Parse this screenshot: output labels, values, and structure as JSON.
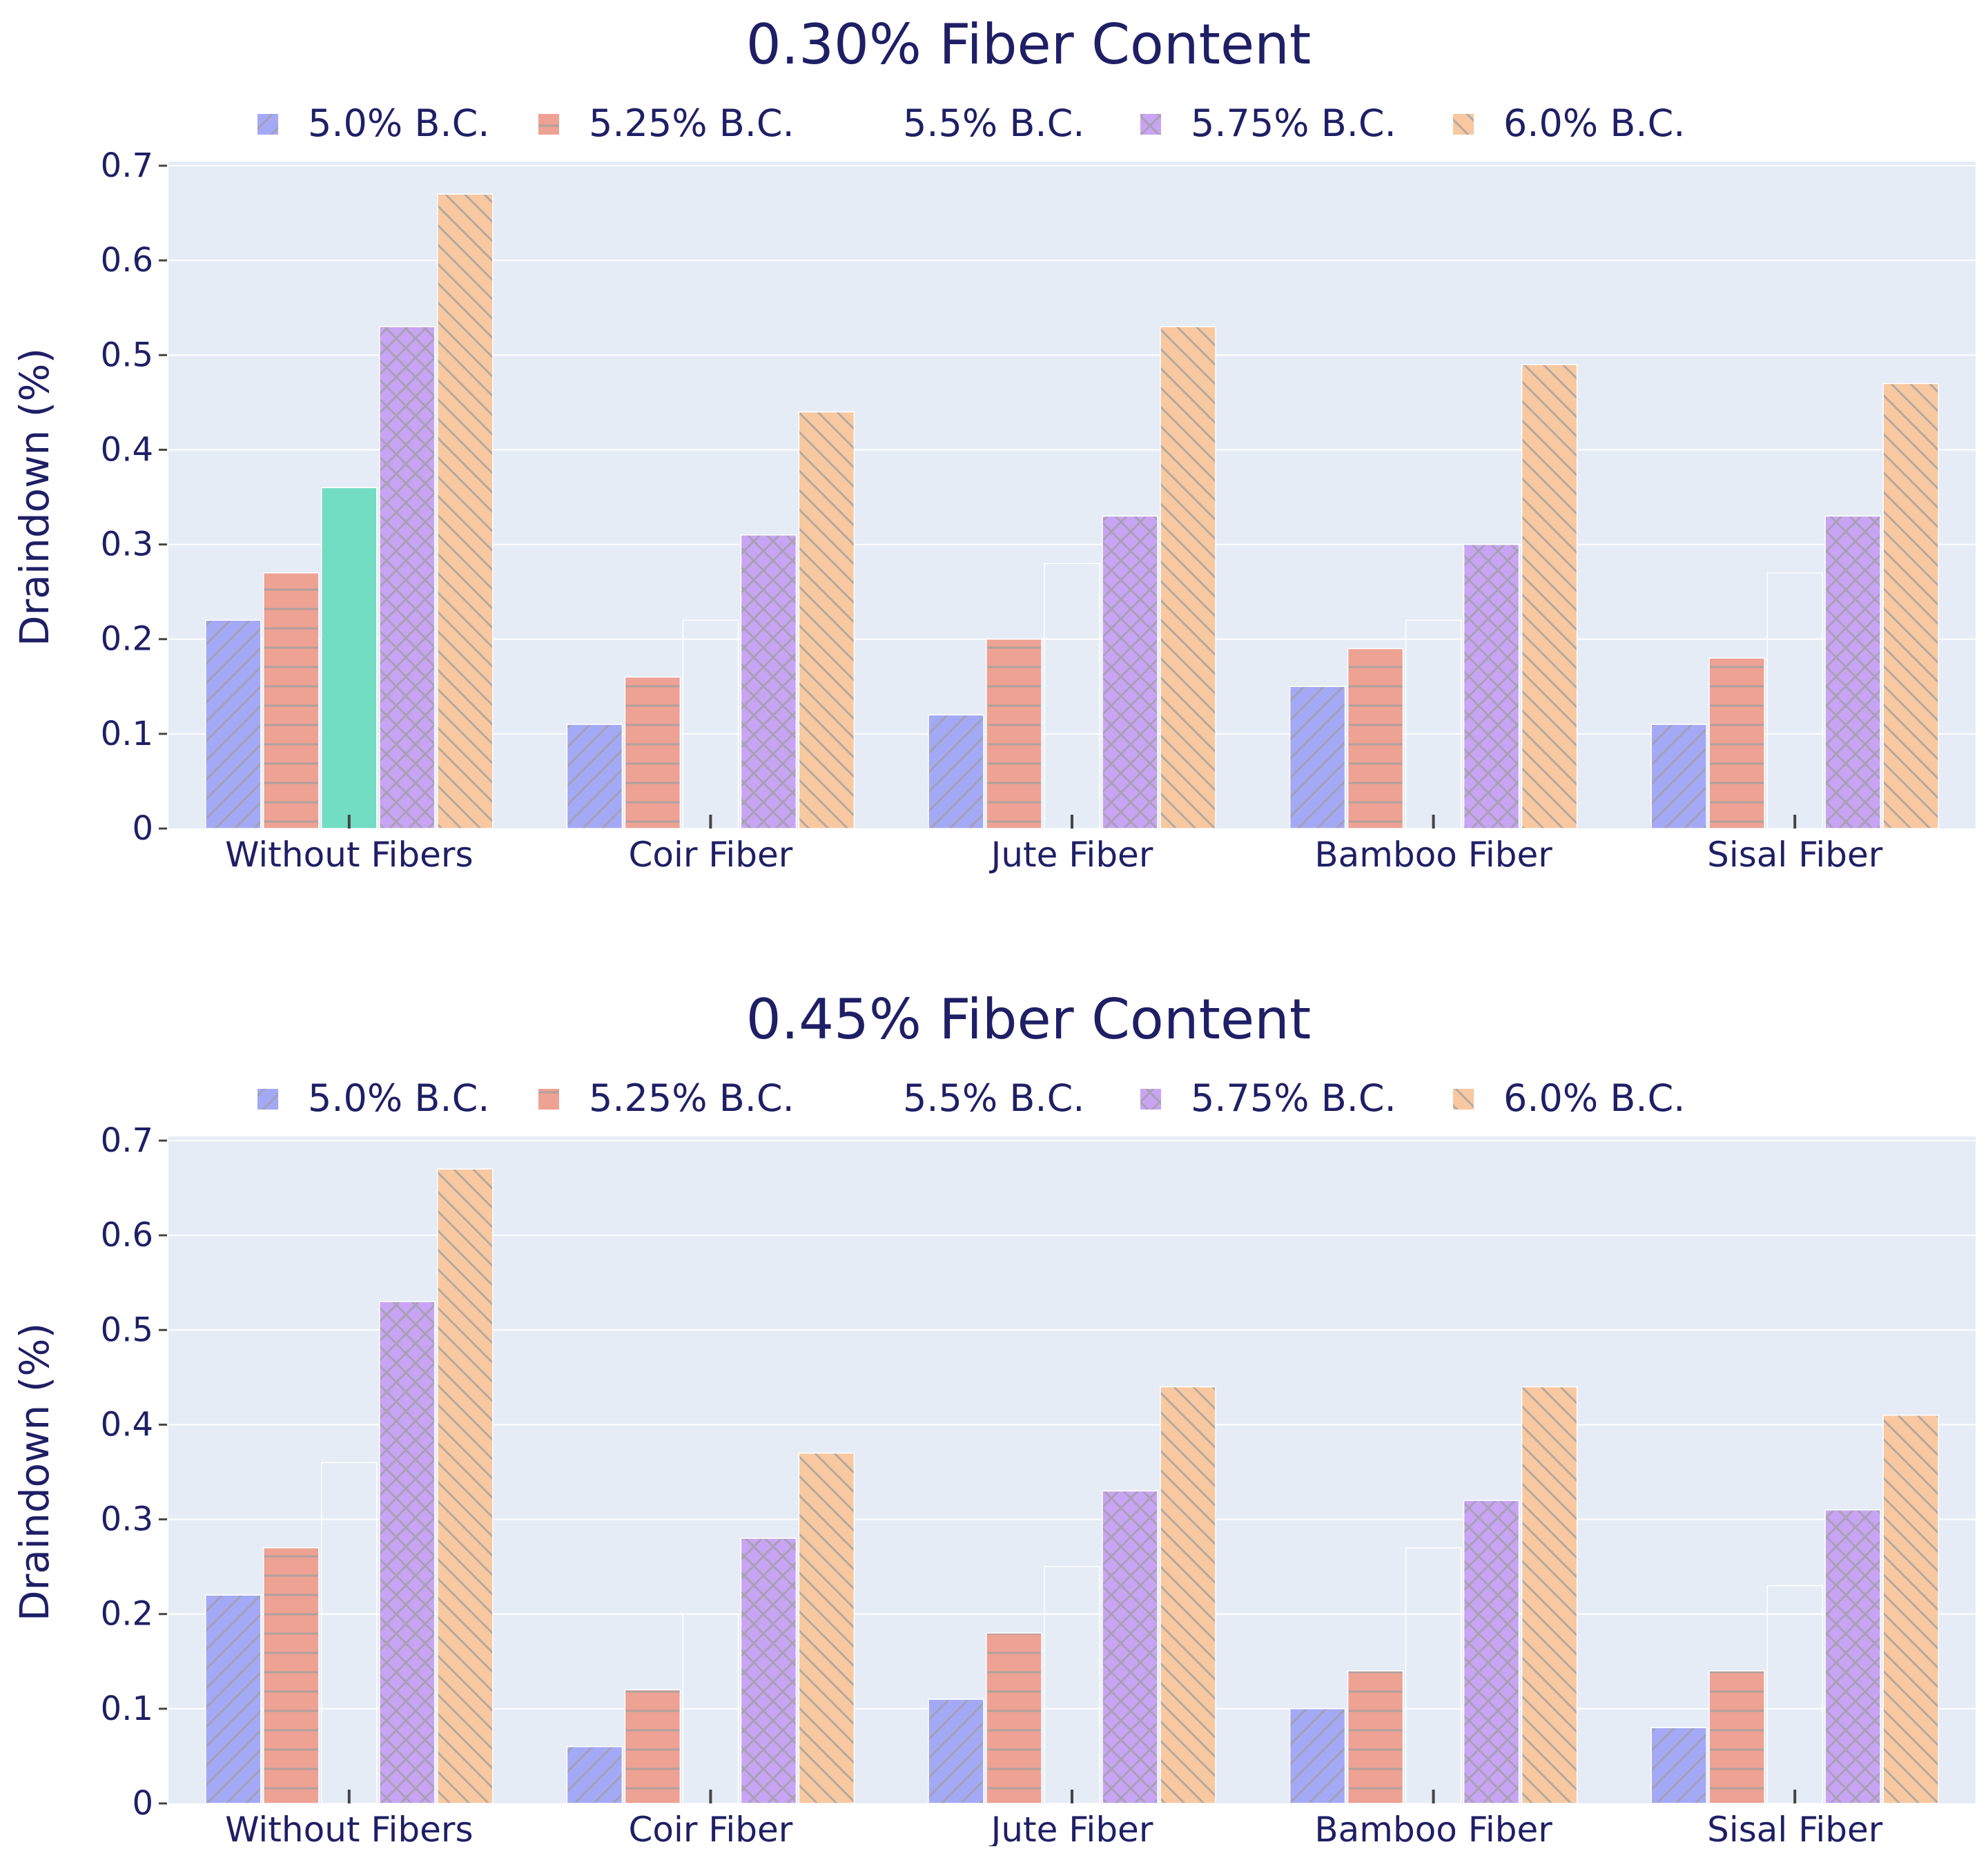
{
  "colors": {
    "text": "#1f1f66",
    "plot_bg": "#e5ecf6",
    "grid": "#ffffff",
    "axis_tick": "#444444",
    "pattern": "#9e9e9e"
  },
  "chart_data": [
    {
      "type": "bar",
      "title": "0.30% Fiber Content",
      "xlabel": "",
      "ylabel": "Draindown (%)",
      "ylim": [
        0,
        0.7
      ],
      "yticks": [
        "0",
        "0.1",
        "0.2",
        "0.3",
        "0.4",
        "0.5",
        "0.6",
        "0.7"
      ],
      "legend_position": "top-center",
      "categories": [
        "Without Fibers",
        "Coir Fiber",
        "Jute Fiber",
        "Bamboo Fiber",
        "Sisal Fiber"
      ],
      "series": [
        {
          "name": "5.0% B.C.",
          "color": "#a4a9f6",
          "pattern": "diagonal-up",
          "values": [
            0.22,
            0.11,
            0.12,
            0.15,
            0.11
          ]
        },
        {
          "name": "5.25% B.C.",
          "color": "#eda293",
          "pattern": "horizontal",
          "values": [
            0.27,
            0.16,
            0.2,
            0.19,
            0.18
          ]
        },
        {
          "name": "5.5% B.C.",
          "color": "#72ddc3",
          "pattern": "none",
          "values": [
            0.36,
            0.22,
            0.28,
            0.22,
            0.27
          ]
        },
        {
          "name": "5.75% B.C.",
          "color": "#c8a4f5",
          "pattern": "cross",
          "values": [
            0.53,
            0.31,
            0.33,
            0.3,
            0.33
          ]
        },
        {
          "name": "6.0% B.C.",
          "color": "#f8c8a0",
          "pattern": "diagonal-down",
          "values": [
            0.67,
            0.44,
            0.53,
            0.49,
            0.47
          ]
        }
      ]
    },
    {
      "type": "bar",
      "title": "0.45% Fiber Content",
      "xlabel": "",
      "ylabel": "Draindown (%)",
      "ylim": [
        0,
        0.7
      ],
      "yticks": [
        "0",
        "0.1",
        "0.2",
        "0.3",
        "0.4",
        "0.5",
        "0.6",
        "0.7"
      ],
      "legend_position": "top-center",
      "categories": [
        "Without Fibers",
        "Coir Fiber",
        "Jute Fiber",
        "Bamboo Fiber",
        "Sisal Fiber"
      ],
      "series": [
        {
          "name": "5.0% B.C.",
          "color": "#a4a9f6",
          "pattern": "diagonal-up",
          "values": [
            0.22,
            0.06,
            0.11,
            0.1,
            0.08
          ]
        },
        {
          "name": "5.25% B.C.",
          "color": "#eda293",
          "pattern": "horizontal",
          "values": [
            0.27,
            0.12,
            0.18,
            0.14,
            0.14
          ]
        },
        {
          "name": "5.5% B.C.",
          "color": "#72ddc3",
          "pattern": "none",
          "values": [
            0.36,
            0.2,
            0.25,
            0.27,
            0.23
          ]
        },
        {
          "name": "5.75% B.C.",
          "color": "#c8a4f5",
          "pattern": "cross",
          "values": [
            0.53,
            0.28,
            0.33,
            0.32,
            0.31
          ]
        },
        {
          "name": "6.0% B.C.",
          "color": "#f8c8a0",
          "pattern": "diagonal-down",
          "values": [
            0.67,
            0.37,
            0.44,
            0.44,
            0.41
          ]
        }
      ]
    }
  ]
}
